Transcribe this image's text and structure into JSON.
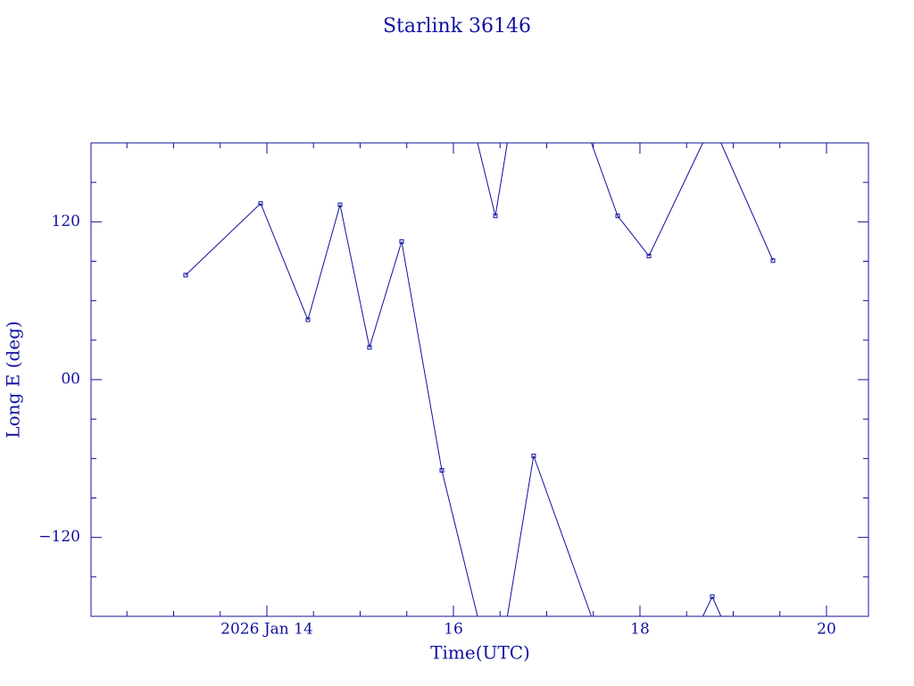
{
  "chart_data": {
    "type": "line",
    "title": "Starlink 36146",
    "xlabel": "Time(UTC)",
    "ylabel": "Long E (deg)",
    "x": [
      13.129,
      13.933,
      14.44,
      14.785,
      15.1,
      15.445,
      15.876,
      16.45,
      16.86,
      17.761,
      18.096,
      18.775,
      19.426
    ],
    "series": [
      {
        "name": "Long E",
        "color": "#1010a0",
        "values": [
          79.5,
          134,
          45.5,
          133,
          24.5,
          105,
          -69,
          124.5,
          -58,
          124.5,
          94,
          -165,
          90.5
        ]
      }
    ],
    "xlim": [
      12.115,
      20.45
    ],
    "xticks": [
      {
        "value": 14,
        "label": "2026 Jan 14"
      },
      16,
      18,
      20
    ],
    "xminorticks": [
      12.5,
      13,
      13.5,
      14.5,
      15,
      15.5,
      16.5,
      17,
      17.5,
      18.5,
      19,
      19.5
    ],
    "ylim": [
      -180,
      180
    ],
    "yticks": [
      {
        "value": -120,
        "label": "−120"
      },
      {
        "value": 0,
        "label": "00"
      },
      120
    ],
    "yminorticks": [
      -150,
      -90,
      -60,
      -30,
      30,
      60,
      90,
      150
    ],
    "wrap": true,
    "markers": true
  }
}
